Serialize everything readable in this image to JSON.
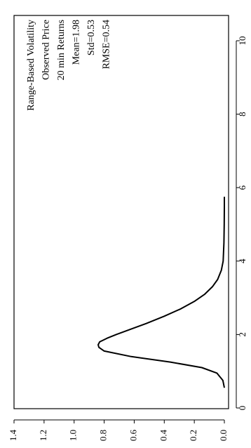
{
  "chart_data": {
    "type": "line",
    "title": "",
    "xlabel": "",
    "ylabel": "",
    "xlim": [
      0,
      11
    ],
    "ylim": [
      0,
      1.4
    ],
    "x_ticks": [
      "0",
      "2",
      "4",
      "6",
      "8",
      "10"
    ],
    "y_ticks": [
      "0.0",
      "0.2",
      "0.4",
      "0.6",
      "0.8",
      "1.0",
      "1.2",
      "1.4"
    ],
    "grid": false,
    "orientation": "rotated 90 degrees counter-clockwise",
    "annotations": [
      "Range-Based Volatility",
      "Observed Price",
      "20 min Returns",
      "Mean=1.98",
      "Std=0.53",
      "RMSE=0.54"
    ],
    "series": [
      {
        "color": "#000000",
        "x": [
          0.55,
          0.75,
          0.95,
          1.1,
          1.25,
          1.4,
          1.55,
          1.65,
          1.72,
          1.8,
          1.9,
          2.0,
          2.15,
          2.3,
          2.5,
          2.7,
          2.9,
          3.1,
          3.3,
          3.5,
          3.75,
          4.0,
          4.5,
          5.0,
          5.5,
          5.75
        ],
        "y": [
          0.0,
          0.01,
          0.05,
          0.15,
          0.36,
          0.62,
          0.8,
          0.835,
          0.84,
          0.83,
          0.78,
          0.72,
          0.62,
          0.52,
          0.4,
          0.29,
          0.2,
          0.13,
          0.08,
          0.045,
          0.02,
          0.008,
          0.003,
          0.001,
          0.0,
          0.0
        ]
      }
    ]
  }
}
